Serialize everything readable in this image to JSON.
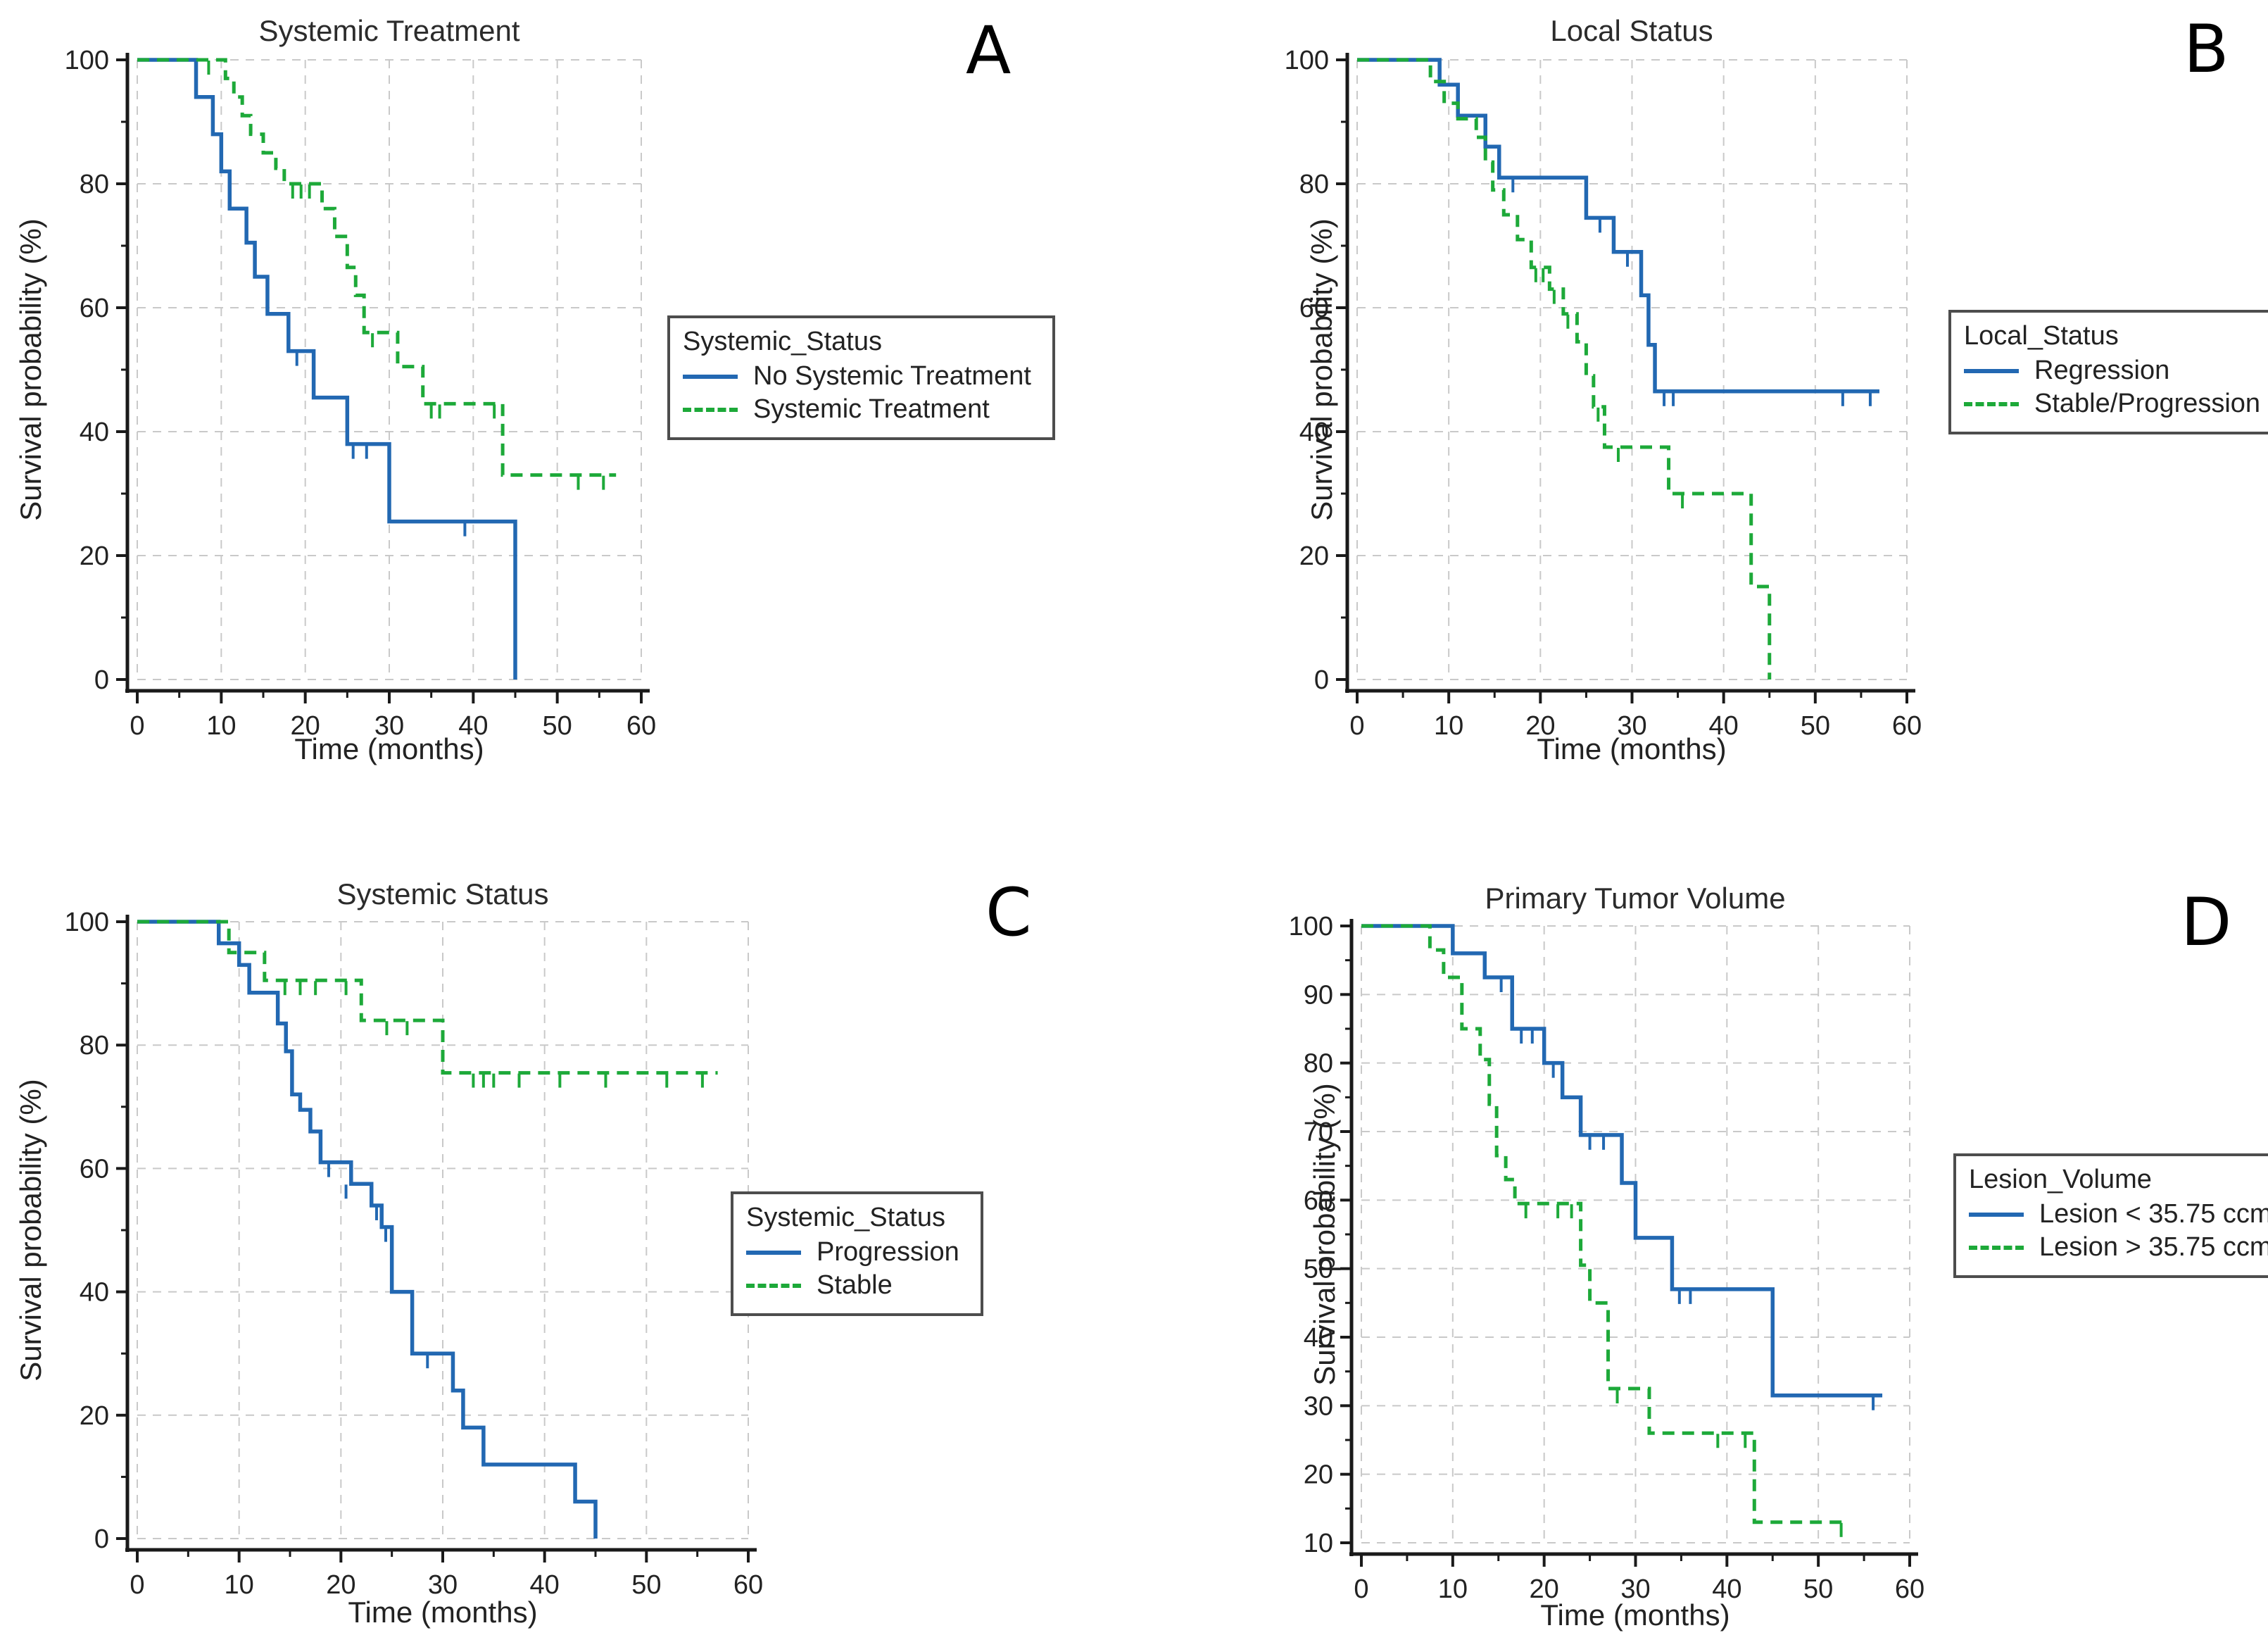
{
  "figure": {
    "background": "#ffffff",
    "description_texts": {
      "xlabel": "Time (months)",
      "ylabel": "Survival probability (%)"
    }
  },
  "colors": {
    "blue": "#2268B2",
    "green": "#1DA939",
    "axis": "#1a1a1a",
    "grid": "#c9c9c9",
    "tick_text": "#222222"
  },
  "chart_data": [
    {
      "type": "line",
      "subtype": "kaplan-meier-step",
      "panel_label": "A",
      "title": "Systemic Treatment",
      "xlabel": "Time (months)",
      "ylabel": "Survival probability (%)",
      "xlim": [
        0,
        60
      ],
      "ylim": [
        0,
        100
      ],
      "x_ticks": [
        0,
        10,
        20,
        30,
        40,
        50,
        60
      ],
      "y_ticks": [
        0,
        20,
        40,
        60,
        80,
        100
      ],
      "y_minor_step": 10,
      "x_minor_step": 5,
      "grid": true,
      "legend_title": "Systemic_Status",
      "legend_position": "right",
      "series": [
        {
          "name": "No Systemic Treatment",
          "color": "#2268B2",
          "dash": false,
          "points": [
            [
              0,
              100
            ],
            [
              7,
              94
            ],
            [
              9,
              88
            ],
            [
              10,
              82
            ],
            [
              11,
              76
            ],
            [
              13,
              70.5
            ],
            [
              14,
              65
            ],
            [
              15.5,
              59
            ],
            [
              18,
              53
            ],
            [
              21,
              45.5
            ],
            [
              25,
              38
            ],
            [
              30,
              25.5
            ],
            [
              45,
              0
            ]
          ],
          "end_x": 45,
          "censors": [
            [
              19,
              53
            ],
            [
              25.7,
              38
            ],
            [
              27.3,
              38
            ],
            [
              39,
              25.5
            ]
          ]
        },
        {
          "name": "Systemic Treatment",
          "color": "#1DA939",
          "dash": true,
          "points": [
            [
              0,
              100
            ],
            [
              10.5,
              97
            ],
            [
              11.5,
              94
            ],
            [
              12.5,
              91
            ],
            [
              13.5,
              88
            ],
            [
              15,
              85
            ],
            [
              16.5,
              82.5
            ],
            [
              17.5,
              80
            ],
            [
              22,
              76
            ],
            [
              23.5,
              71.5
            ],
            [
              25,
              66.5
            ],
            [
              26,
              62
            ],
            [
              27,
              56
            ],
            [
              31,
              50.5
            ],
            [
              34,
              44.5
            ],
            [
              43.5,
              33
            ]
          ],
          "end_x": 57,
          "censors": [
            [
              8.5,
              100
            ],
            [
              18.5,
              80
            ],
            [
              19.5,
              80
            ],
            [
              20.5,
              80
            ],
            [
              28,
              56
            ],
            [
              35,
              44.5
            ],
            [
              36,
              44.5
            ],
            [
              42.5,
              44.5
            ],
            [
              52.5,
              33
            ],
            [
              55.5,
              33
            ]
          ]
        }
      ]
    },
    {
      "type": "line",
      "subtype": "kaplan-meier-step",
      "panel_label": "B",
      "title": "Local Status",
      "xlabel": "Time (months)",
      "ylabel": "Survival probability (%)",
      "xlim": [
        0,
        60
      ],
      "ylim": [
        0,
        100
      ],
      "x_ticks": [
        0,
        10,
        20,
        30,
        40,
        50,
        60
      ],
      "y_ticks": [
        0,
        20,
        40,
        60,
        80,
        100
      ],
      "y_minor_step": 10,
      "x_minor_step": 5,
      "grid": true,
      "legend_title": "Local_Status",
      "legend_position": "right",
      "series": [
        {
          "name": "Regression",
          "color": "#2268B2",
          "dash": false,
          "points": [
            [
              0,
              100
            ],
            [
              9,
              96
            ],
            [
              11,
              91
            ],
            [
              14,
              86
            ],
            [
              15.5,
              81
            ],
            [
              25,
              74.5
            ],
            [
              28,
              69
            ],
            [
              31,
              62
            ],
            [
              31.8,
              54
            ],
            [
              32.5,
              46.5
            ]
          ],
          "end_x": 57,
          "censors": [
            [
              17,
              81
            ],
            [
              26.5,
              74.5
            ],
            [
              29.5,
              69
            ],
            [
              33.5,
              46.5
            ],
            [
              34.5,
              46.5
            ],
            [
              53,
              46.5
            ],
            [
              56,
              46.5
            ]
          ]
        },
        {
          "name": "Stable/Progression",
          "color": "#1DA939",
          "dash": true,
          "points": [
            [
              0,
              100
            ],
            [
              8,
              96.5
            ],
            [
              9.5,
              93
            ],
            [
              11,
              90.5
            ],
            [
              13,
              87.5
            ],
            [
              14,
              83.5
            ],
            [
              14.8,
              79
            ],
            [
              16,
              75
            ],
            [
              17.5,
              71
            ],
            [
              19,
              66.5
            ],
            [
              21,
              63
            ],
            [
              22.5,
              59
            ],
            [
              24,
              54.5
            ],
            [
              25,
              49
            ],
            [
              25.8,
              44
            ],
            [
              27,
              37.5
            ],
            [
              34,
              30
            ],
            [
              43,
              15
            ],
            [
              45,
              0
            ]
          ],
          "end_x": 45,
          "censors": [
            [
              19.5,
              66.5
            ],
            [
              20.3,
              66.5
            ],
            [
              21.5,
              63
            ],
            [
              23,
              59
            ],
            [
              26.3,
              44
            ],
            [
              28.5,
              37.5
            ],
            [
              35.5,
              30
            ]
          ]
        }
      ]
    },
    {
      "type": "line",
      "subtype": "kaplan-meier-step",
      "panel_label": "C",
      "title": "Systemic Status",
      "xlabel": "Time (months)",
      "ylabel": "Survival probability (%)",
      "xlim": [
        0,
        60
      ],
      "ylim": [
        0,
        100
      ],
      "x_ticks": [
        0,
        10,
        20,
        30,
        40,
        50,
        60
      ],
      "y_ticks": [
        0,
        20,
        40,
        60,
        80,
        100
      ],
      "y_minor_step": 10,
      "x_minor_step": 5,
      "grid": true,
      "legend_title": "Systemic_Status",
      "legend_position": "right",
      "series": [
        {
          "name": "Progression",
          "color": "#2268B2",
          "dash": false,
          "points": [
            [
              0,
              100
            ],
            [
              8,
              96.5
            ],
            [
              10,
              93
            ],
            [
              11,
              88.5
            ],
            [
              13.8,
              83.5
            ],
            [
              14.6,
              79
            ],
            [
              15.2,
              72
            ],
            [
              16,
              69.5
            ],
            [
              17,
              66
            ],
            [
              18,
              61
            ],
            [
              21,
              57.5
            ],
            [
              23,
              54
            ],
            [
              24,
              50.5
            ],
            [
              25,
              40
            ],
            [
              27,
              30
            ],
            [
              31,
              24
            ],
            [
              32,
              18
            ],
            [
              34,
              12
            ],
            [
              43,
              6
            ],
            [
              45,
              0
            ]
          ],
          "end_x": 45,
          "censors": [
            [
              18.8,
              61
            ],
            [
              20.5,
              57.5
            ],
            [
              23.5,
              54
            ],
            [
              24.4,
              50.5
            ],
            [
              28.5,
              30
            ]
          ]
        },
        {
          "name": "Stable",
          "color": "#1DA939",
          "dash": true,
          "points": [
            [
              0,
              100
            ],
            [
              9,
              95
            ],
            [
              12.5,
              90.5
            ],
            [
              22,
              84
            ],
            [
              30,
              75.5
            ]
          ],
          "end_x": 57,
          "censors": [
            [
              14.5,
              90.5
            ],
            [
              16,
              90.5
            ],
            [
              17.5,
              90.5
            ],
            [
              20.5,
              90.5
            ],
            [
              24.5,
              84
            ],
            [
              26.5,
              84
            ],
            [
              33,
              75.5
            ],
            [
              34,
              75.5
            ],
            [
              35,
              75.5
            ],
            [
              37.5,
              75.5
            ],
            [
              41.5,
              75.5
            ],
            [
              46,
              75.5
            ],
            [
              52,
              75.5
            ],
            [
              55.5,
              75.5
            ]
          ]
        }
      ]
    },
    {
      "type": "line",
      "subtype": "kaplan-meier-step",
      "panel_label": "D",
      "title": "Primary Tumor Volume",
      "xlabel": "Time (months)",
      "ylabel": "Survival probability (%)",
      "xlim": [
        0,
        60
      ],
      "ylim": [
        10,
        100
      ],
      "x_ticks": [
        0,
        10,
        20,
        30,
        40,
        50,
        60
      ],
      "y_ticks": [
        10,
        20,
        30,
        40,
        50,
        60,
        70,
        80,
        90,
        100
      ],
      "y_minor_step": 5,
      "x_minor_step": 5,
      "grid": true,
      "legend_title": "Lesion_Volume",
      "legend_position": "right",
      "series": [
        {
          "name": "Lesion < 35.75 ccm",
          "color": "#2268B2",
          "dash": false,
          "points": [
            [
              0,
              100
            ],
            [
              10,
              96
            ],
            [
              13.5,
              92.5
            ],
            [
              16.5,
              85
            ],
            [
              20,
              80
            ],
            [
              22,
              75
            ],
            [
              24,
              69.5
            ],
            [
              28.5,
              62.5
            ],
            [
              30,
              54.5
            ],
            [
              34,
              47
            ],
            [
              45,
              31.5
            ]
          ],
          "end_x": 57,
          "censors": [
            [
              15.3,
              92.5
            ],
            [
              17.5,
              85
            ],
            [
              18.7,
              85
            ],
            [
              21,
              80
            ],
            [
              25,
              69.5
            ],
            [
              26.5,
              69.5
            ],
            [
              34.8,
              47
            ],
            [
              36,
              47
            ],
            [
              56,
              31.5
            ]
          ]
        },
        {
          "name": "Lesion > 35.75 ccm",
          "color": "#1DA939",
          "dash": true,
          "points": [
            [
              0,
              100
            ],
            [
              7.5,
              96.5
            ],
            [
              9,
              92.5
            ],
            [
              11,
              85
            ],
            [
              13,
              80.5
            ],
            [
              14,
              74
            ],
            [
              14.8,
              66.5
            ],
            [
              15.8,
              63
            ],
            [
              16.8,
              59.5
            ],
            [
              24,
              50.5
            ],
            [
              25,
              45
            ],
            [
              27,
              32.5
            ],
            [
              31.5,
              26
            ],
            [
              43,
              13
            ]
          ],
          "end_x": 53,
          "censors": [
            [
              18,
              59.5
            ],
            [
              21.5,
              59.5
            ],
            [
              23,
              59.5
            ],
            [
              28,
              32.5
            ],
            [
              39,
              26
            ],
            [
              42,
              26
            ],
            [
              52.5,
              13
            ]
          ]
        }
      ]
    }
  ]
}
